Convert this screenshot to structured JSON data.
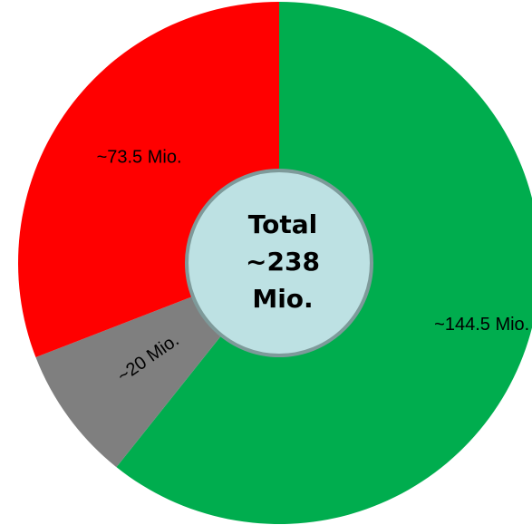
{
  "chart_data": {
    "type": "pie",
    "variant": "donut",
    "slices": [
      {
        "label": "~144.5 Mio.",
        "value": 144.5,
        "color": "#00AD4E"
      },
      {
        "label": "~20 Mio.",
        "value": 20,
        "color": "#7F7F7F"
      },
      {
        "label": "~73.5 Mio.",
        "value": 73.5,
        "color": "#FF0000"
      }
    ],
    "total_lines": [
      "Total",
      "~238",
      "Mio."
    ],
    "center_fill": "#BDE1E3",
    "center_stroke": "#7E9A9A",
    "start_angle": "12 o'clock",
    "direction": "clockwise"
  }
}
